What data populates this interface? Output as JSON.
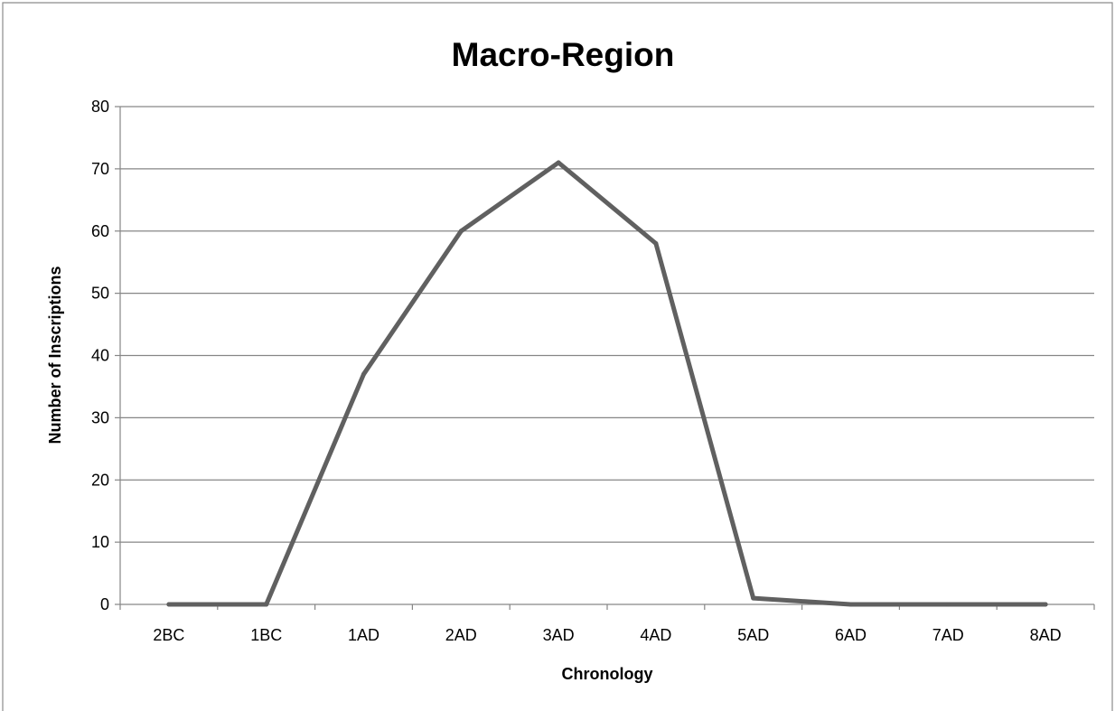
{
  "chart_data": {
    "type": "line",
    "title": "Macro-Region",
    "xlabel": "Chronology",
    "ylabel": "Number of Inscriptions",
    "categories": [
      "2BC",
      "1BC",
      "1AD",
      "2AD",
      "3AD",
      "4AD",
      "5AD",
      "6AD",
      "7AD",
      "8AD"
    ],
    "series": [
      {
        "values": [
          0,
          0,
          37,
          60,
          71,
          58,
          1,
          0,
          0,
          0
        ]
      }
    ],
    "ylim": [
      0,
      80
    ],
    "yticks": [
      0,
      10,
      20,
      30,
      40,
      50,
      60,
      70,
      80
    ],
    "grid": true,
    "legend": "none",
    "colors": {
      "line": "#606060",
      "grid": "#868686",
      "frame": "#8c8c8c"
    }
  }
}
